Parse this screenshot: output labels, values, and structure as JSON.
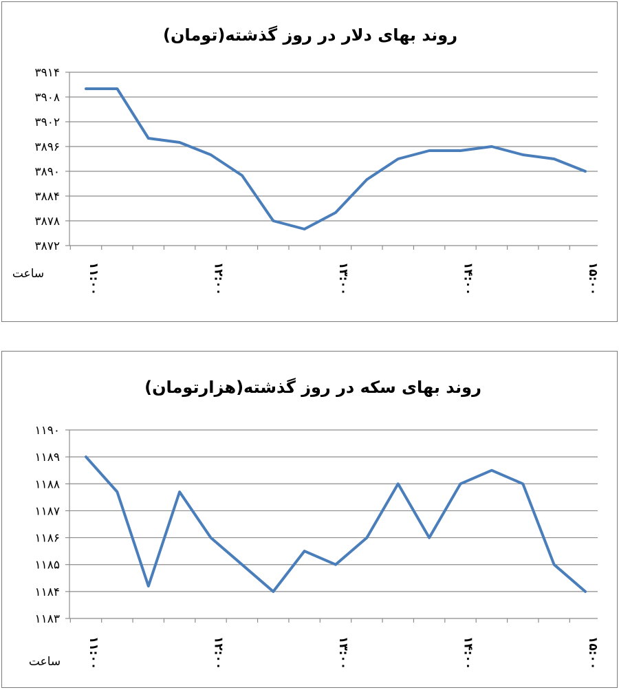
{
  "chart_data": [
    {
      "type": "line",
      "title": "روند بهای دلار در روز گذشته(تومان)",
      "xlabel": "ساعت",
      "ylabel": "",
      "yticks": [
        "۳۸۷۲",
        "۳۸۷۸",
        "۳۸۸۴",
        "۳۸۹۰",
        "۳۸۹۶",
        "۳۹۰۲",
        "۳۹۰۸",
        "۳۹۱۴"
      ],
      "ylim": [
        3872,
        3914
      ],
      "grid": true,
      "xticks": [
        "۱۱:۰۰",
        "۱۲:۰۰",
        "۱۳:۰۰",
        "۱۴:۰۰",
        "۱۵:۰۰"
      ],
      "line_color": "#4a7ebb",
      "series": [
        {
          "values": [
            3910,
            3910,
            3898,
            3897,
            3894,
            3889,
            3878,
            3876,
            3880,
            3888,
            3893,
            3895,
            3895,
            3896,
            3894,
            3893,
            3890
          ]
        }
      ]
    },
    {
      "type": "line",
      "title": "روند بهای سکه در روز گذشته(هزارتومان)",
      "xlabel": "ساعت",
      "ylabel": "",
      "yticks": [
        "۱۱۸۳",
        "۱۱۸۴",
        "۱۱۸۵",
        "۱۱۸۶",
        "۱۱۸۷",
        "۱۱۸۸",
        "۱۱۸۹",
        "۱۱۹۰"
      ],
      "ylim": [
        1183,
        1190
      ],
      "grid": true,
      "xticks": [
        "۱۱:۰۰",
        "۱۲:۰۰",
        "۱۳:۰۰",
        "۱۴:۰۰",
        "۱۵:۰۰"
      ],
      "line_color": "#4a7ebb",
      "series": [
        {
          "values": [
            1189,
            1187.7,
            1184.2,
            1187.7,
            1186,
            1185,
            1184,
            1185.5,
            1185,
            1186,
            1188,
            1186,
            1188,
            1188.5,
            1188,
            1185,
            1184
          ]
        }
      ]
    }
  ]
}
